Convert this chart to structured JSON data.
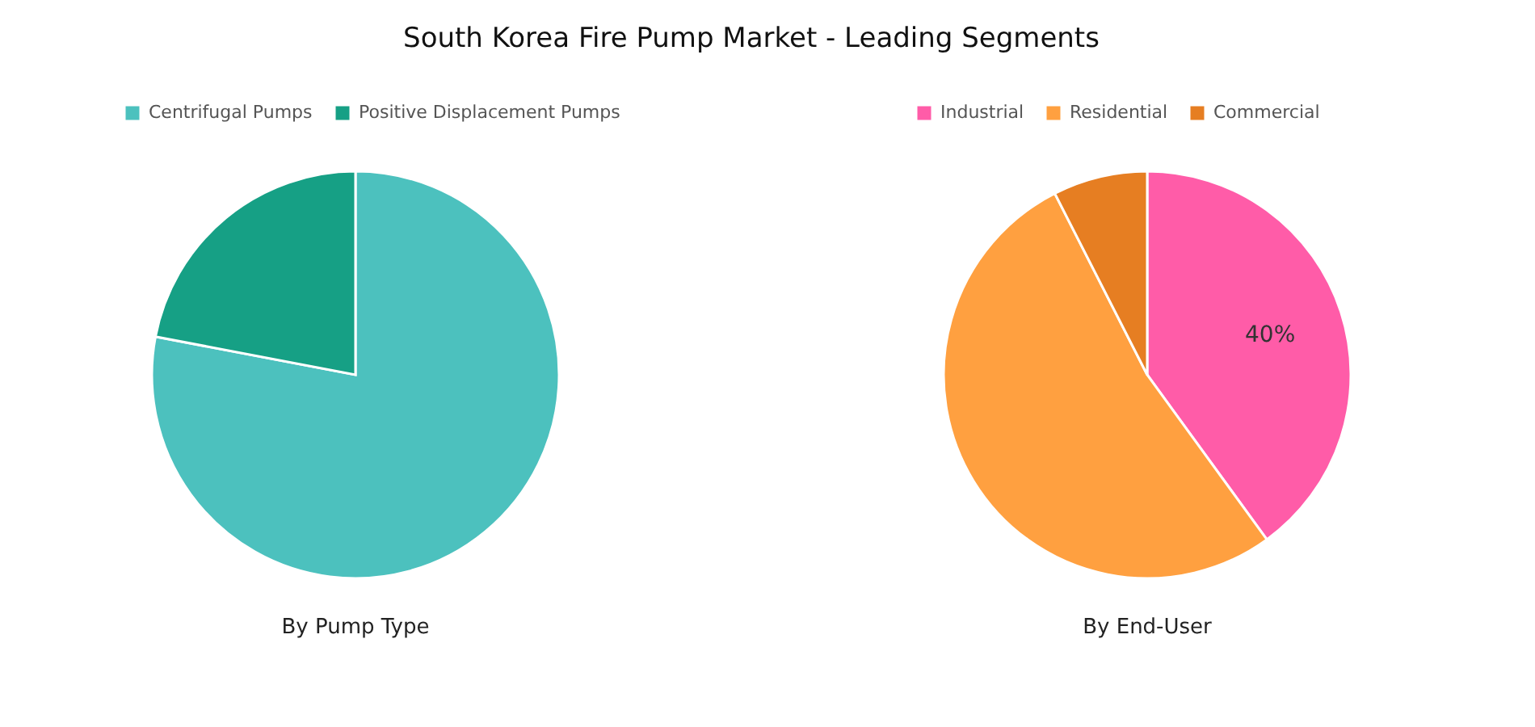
{
  "chart_data": [
    {
      "type": "pie",
      "title": "South Korea Fire Pump Market - Leading Segments",
      "xlabel": "By Pump Type",
      "categories": [
        "Centrifugal Pumps",
        "Positive Displacement Pumps"
      ],
      "values": [
        78,
        22
      ],
      "colors": [
        "#4cc1be",
        "#16a085"
      ],
      "legend": "top"
    },
    {
      "type": "pie",
      "xlabel": "By End-User",
      "categories": [
        "Industrial",
        "Residential",
        "Commercial"
      ],
      "values": [
        40,
        52.5,
        7.5
      ],
      "colors": [
        "#ff5ca8",
        "#ffa040",
        "#e67e22"
      ],
      "value_labels": [
        "40%",
        null,
        null
      ],
      "legend": "top"
    }
  ]
}
